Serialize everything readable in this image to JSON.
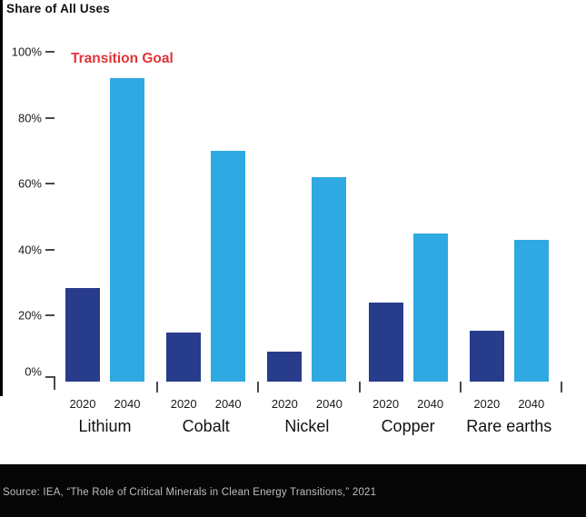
{
  "figure": {
    "title": "Share of All Uses",
    "annotation": {
      "text": "Transition Goal",
      "color": "#e13438"
    },
    "source": "Source: IEA, “The Role of Critical Minerals in Clean Energy Transitions,” 2021"
  },
  "colors": {
    "bar_2020": "#283c8c",
    "bar_2040": "#2fa9e1",
    "annotation_red": "#e13438",
    "footer_background": "#060606",
    "footer_text": "#bfbfbf",
    "axis_tick": "#4a4a4a"
  },
  "chart_data": {
    "type": "bar",
    "title": "Share of All Uses",
    "categories": [
      "Lithium",
      "Cobalt",
      "Nickel",
      "Copper",
      "Rare earths"
    ],
    "series": [
      {
        "name": "2020",
        "color": "#283c8c",
        "values": [
          28.5,
          15,
          9,
          24,
          15.5
        ]
      },
      {
        "name": "2040",
        "color": "#2fa9e1",
        "values": [
          92,
          70,
          62,
          45,
          43
        ]
      }
    ],
    "xlabel": "",
    "ylabel": "Share of All Uses",
    "ylim": [
      0,
      100
    ],
    "yticks": [
      0,
      20,
      40,
      60,
      80,
      100
    ],
    "ytick_labels": [
      "0%",
      "20%",
      "40%",
      "60%",
      "80%",
      "100%"
    ],
    "grid": false,
    "legend_position": "none",
    "annotations": [
      {
        "text": "Transition Goal",
        "color": "#e13438",
        "near": "Lithium 2040 bar top"
      }
    ],
    "source": "Source: IEA, “The Role of Critical Minerals in Clean Energy Transitions,” 2021"
  }
}
